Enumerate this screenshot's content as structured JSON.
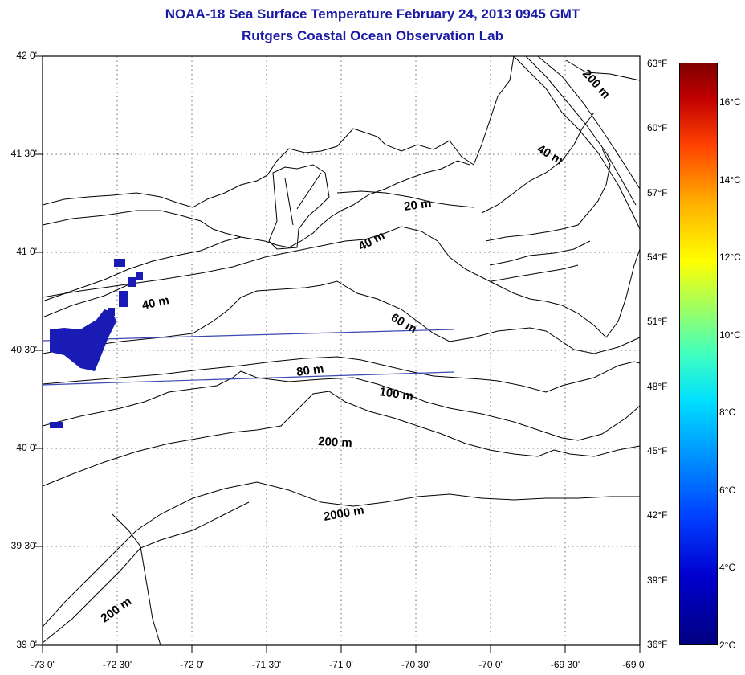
{
  "title": {
    "line1": "NOAA-18 Sea Surface Temperature February 24, 2013 0945 GMT",
    "line2": "Rutgers Coastal Ocean Observation Lab"
  },
  "axes": {
    "latitude_ticks": [
      "42 0'",
      "41 30'",
      "41 0'",
      "40 30'",
      "40 0'",
      "39 30'",
      "39 0'"
    ],
    "longitude_ticks": [
      "-73 0'",
      "-72 30'",
      "-72 0'",
      "-71 30'",
      "-71 0'",
      "-70 30'",
      "-70 0'",
      "-69 30'",
      "-69 0'"
    ]
  },
  "contour_labels": [
    "20 m",
    "40 m",
    "40 m",
    "40 m",
    "60 m",
    "80 m",
    "100 m",
    "200 m",
    "200 m",
    "200 m",
    "2000 m"
  ],
  "colorbar": {
    "fahrenheit_labels": [
      "63°F",
      "60°F",
      "57°F",
      "54°F",
      "51°F",
      "48°F",
      "45°F",
      "42°F",
      "39°F",
      "36°F"
    ],
    "celsius_labels": [
      "16°C",
      "14°C",
      "12°C",
      "10°C",
      "8°C",
      "6°C",
      "4°C",
      "2°C"
    ]
  },
  "colors": {
    "title": "#1a1aa6",
    "sst_cold": "#1a1ab4",
    "track_line": "#3a4ab0",
    "grid": "#444444"
  }
}
